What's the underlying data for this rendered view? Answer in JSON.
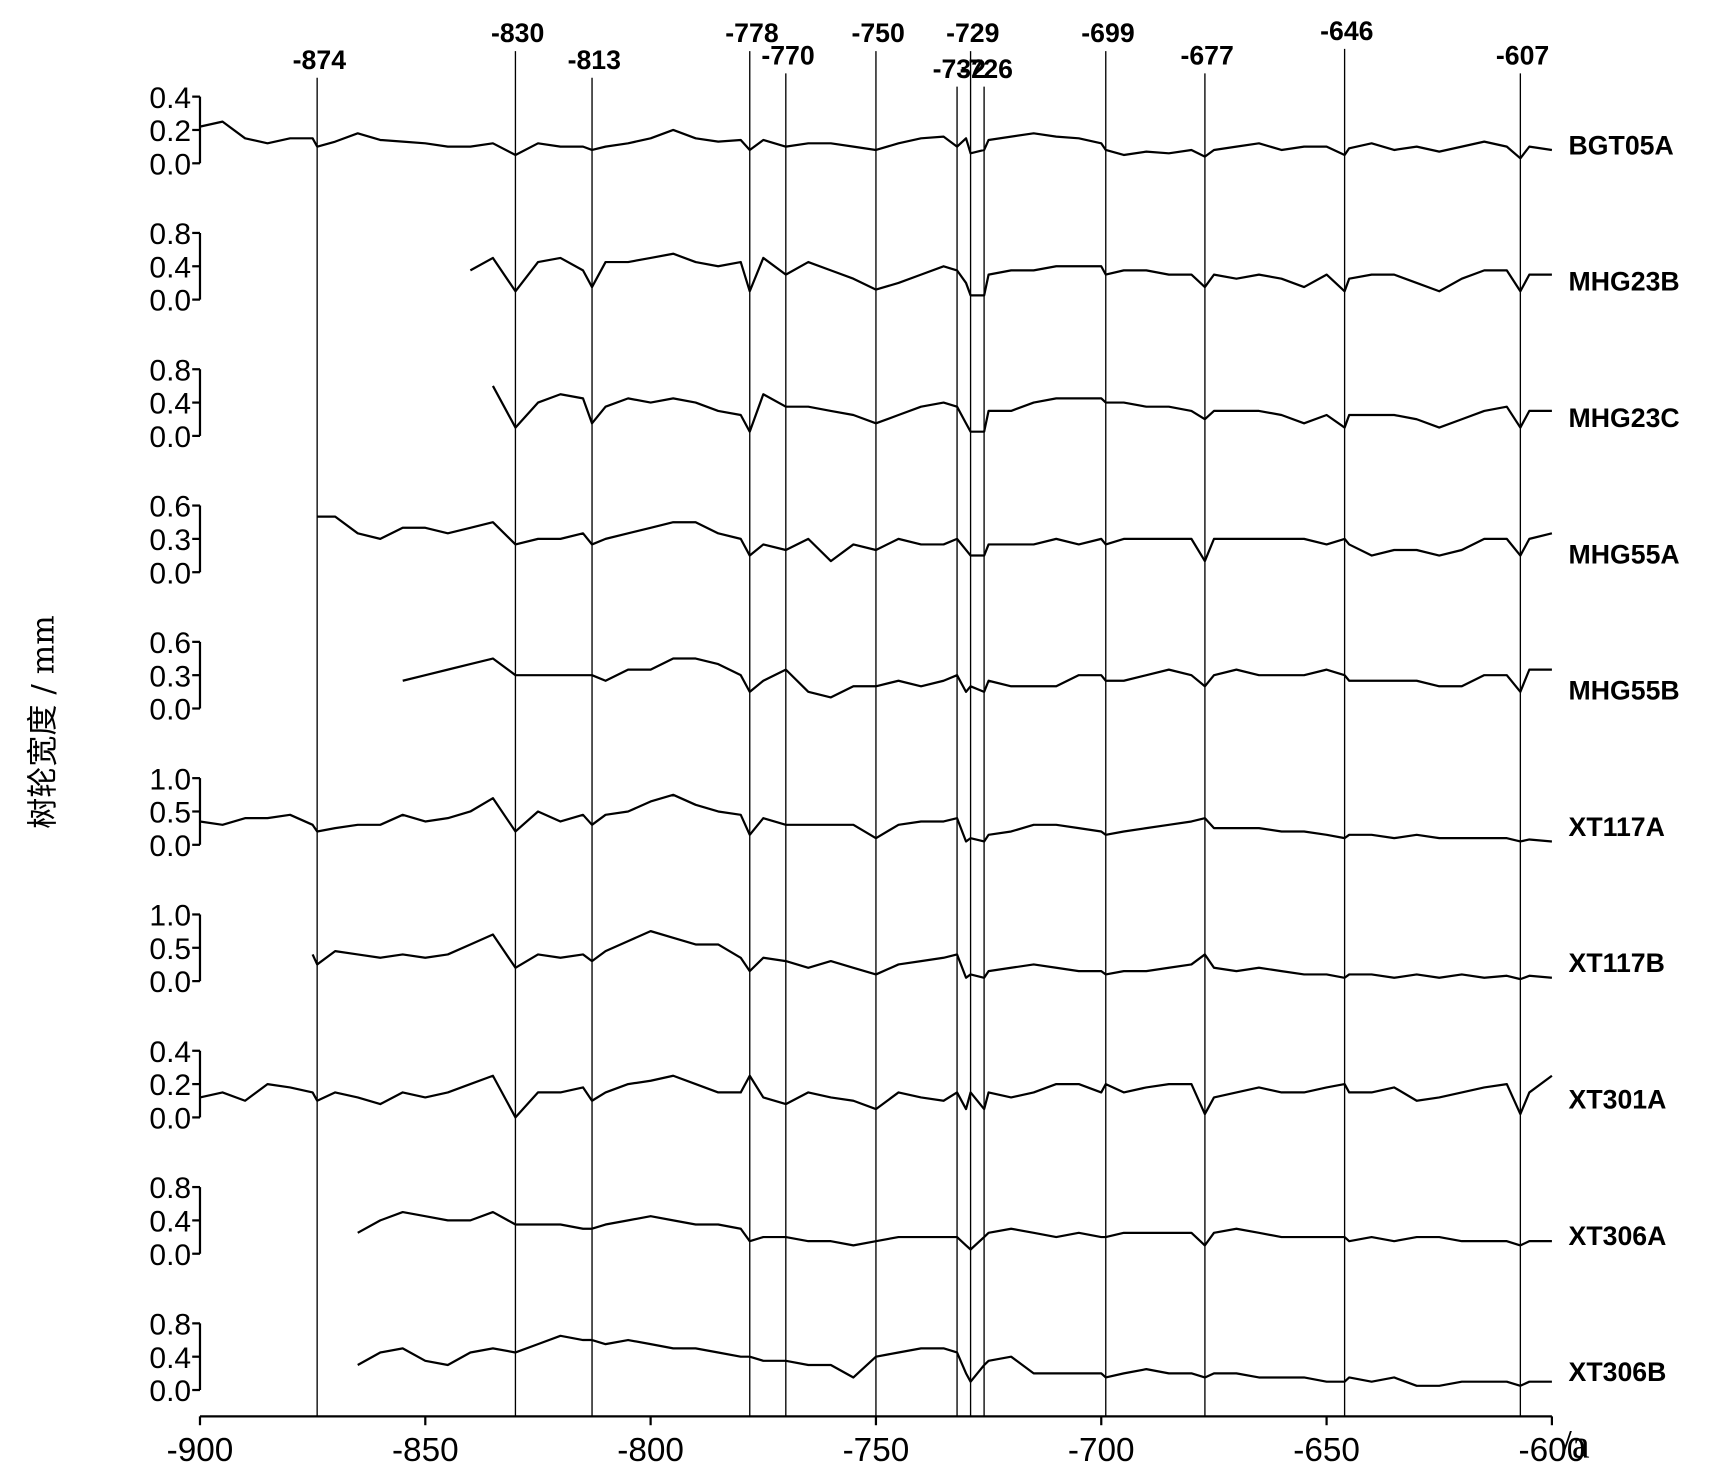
{
  "chart_data": {
    "type": "line",
    "y_label": "树轮宽度 / mm",
    "x_label": "/a",
    "xlim": [
      -900,
      -600
    ],
    "xticks": [
      -900,
      -850,
      -800,
      -750,
      -700,
      -650,
      -600
    ],
    "marker_years": [
      -874,
      -830,
      -813,
      -778,
      -770,
      -750,
      -732,
      -729,
      -726,
      -699,
      -677,
      -646,
      -607
    ],
    "x": [
      -900,
      -895,
      -890,
      -885,
      -880,
      -875,
      -874,
      -870,
      -865,
      -860,
      -855,
      -850,
      -845,
      -840,
      -835,
      -830,
      -825,
      -820,
      -815,
      -813,
      -810,
      -805,
      -800,
      -795,
      -790,
      -785,
      -780,
      -778,
      -775,
      -770,
      -765,
      -760,
      -755,
      -750,
      -745,
      -740,
      -735,
      -732,
      -730,
      -729,
      -726,
      -725,
      -720,
      -715,
      -710,
      -705,
      -700,
      -699,
      -695,
      -690,
      -685,
      -680,
      -677,
      -675,
      -670,
      -665,
      -660,
      -655,
      -650,
      -646,
      -645,
      -640,
      -635,
      -630,
      -625,
      -620,
      -615,
      -610,
      -607,
      -605,
      -600
    ],
    "series": [
      {
        "name": "BGT05A",
        "color": "#000000",
        "ylim": [
          0,
          0.4
        ],
        "yticks": [
          {
            "value": 0,
            "label": "0.0"
          },
          0.2,
          0.4
        ],
        "values": [
          0.22,
          0.25,
          0.15,
          0.12,
          0.15,
          0.15,
          0.1,
          0.13,
          0.18,
          0.14,
          0.13,
          0.12,
          0.1,
          0.1,
          0.12,
          0.05,
          0.12,
          0.1,
          0.1,
          0.08,
          0.1,
          0.12,
          0.15,
          0.2,
          0.15,
          0.13,
          0.14,
          0.08,
          0.14,
          0.1,
          0.12,
          0.12,
          0.1,
          0.08,
          0.12,
          0.15,
          0.16,
          0.1,
          0.15,
          0.06,
          0.08,
          0.14,
          0.16,
          0.18,
          0.16,
          0.15,
          0.12,
          0.08,
          0.05,
          0.07,
          0.06,
          0.08,
          0.04,
          0.08,
          0.1,
          0.12,
          0.08,
          0.1,
          0.1,
          0.05,
          0.09,
          0.12,
          0.08,
          0.1,
          0.07,
          0.1,
          0.13,
          0.1,
          0.03,
          0.1,
          0.08
        ]
      },
      {
        "name": "MHG23B",
        "color": "#000000",
        "ylim": [
          0,
          0.8
        ],
        "yticks": [
          {
            "value": 0,
            "label": "0.0"
          },
          0.4,
          0.8
        ],
        "values": [
          null,
          null,
          null,
          null,
          null,
          null,
          null,
          null,
          null,
          null,
          null,
          null,
          null,
          0.35,
          0.5,
          0.1,
          0.45,
          0.5,
          0.35,
          0.15,
          0.45,
          0.45,
          0.5,
          0.55,
          0.45,
          0.4,
          0.45,
          0.1,
          0.5,
          0.3,
          0.45,
          0.35,
          0.25,
          0.12,
          0.2,
          0.3,
          0.4,
          0.35,
          0.2,
          0.05,
          0.05,
          0.3,
          0.35,
          0.35,
          0.4,
          0.4,
          0.4,
          0.3,
          0.35,
          0.35,
          0.3,
          0.3,
          0.15,
          0.3,
          0.25,
          0.3,
          0.25,
          0.15,
          0.3,
          0.1,
          0.25,
          0.3,
          0.3,
          0.2,
          0.1,
          0.25,
          0.35,
          0.35,
          0.1,
          0.3,
          0.3
        ]
      },
      {
        "name": "MHG23C",
        "color": "#000000",
        "ylim": [
          0,
          0.8
        ],
        "yticks": [
          {
            "value": 0,
            "label": "0.0"
          },
          0.4,
          0.8
        ],
        "values": [
          null,
          null,
          null,
          null,
          null,
          null,
          null,
          null,
          null,
          null,
          null,
          null,
          null,
          null,
          0.6,
          0.1,
          0.4,
          0.5,
          0.45,
          0.15,
          0.35,
          0.45,
          0.4,
          0.45,
          0.4,
          0.3,
          0.25,
          0.05,
          0.5,
          0.35,
          0.35,
          0.3,
          0.25,
          0.15,
          0.25,
          0.35,
          0.4,
          0.35,
          0.15,
          0.05,
          0.05,
          0.3,
          0.3,
          0.4,
          0.45,
          0.45,
          0.45,
          0.4,
          0.4,
          0.35,
          0.35,
          0.3,
          0.2,
          0.3,
          0.3,
          0.3,
          0.25,
          0.15,
          0.25,
          0.1,
          0.25,
          0.25,
          0.25,
          0.2,
          0.1,
          0.2,
          0.3,
          0.35,
          0.1,
          0.3,
          0.3
        ]
      },
      {
        "name": "MHG55A",
        "color": "#000000",
        "ylim": [
          0,
          0.6
        ],
        "yticks": [
          {
            "value": 0,
            "label": "0.0"
          },
          0.3,
          0.6
        ],
        "values": [
          null,
          null,
          null,
          null,
          null,
          null,
          0.5,
          0.5,
          0.35,
          0.3,
          0.4,
          0.4,
          0.35,
          0.4,
          0.45,
          0.25,
          0.3,
          0.3,
          0.35,
          0.25,
          0.3,
          0.35,
          0.4,
          0.45,
          0.45,
          0.35,
          0.3,
          0.15,
          0.25,
          0.2,
          0.3,
          0.1,
          0.25,
          0.2,
          0.3,
          0.25,
          0.25,
          0.3,
          0.2,
          0.15,
          0.15,
          0.25,
          0.25,
          0.25,
          0.3,
          0.25,
          0.3,
          0.25,
          0.3,
          0.3,
          0.3,
          0.3,
          0.1,
          0.3,
          0.3,
          0.3,
          0.3,
          0.3,
          0.25,
          0.3,
          0.25,
          0.15,
          0.2,
          0.2,
          0.15,
          0.2,
          0.3,
          0.3,
          0.15,
          0.3,
          0.35
        ]
      },
      {
        "name": "MHG55B",
        "color": "#000000",
        "ylim": [
          0,
          0.6
        ],
        "yticks": [
          {
            "value": 0,
            "label": "0.0"
          },
          0.3,
          0.6
        ],
        "values": [
          null,
          null,
          null,
          null,
          null,
          null,
          null,
          null,
          null,
          null,
          0.25,
          0.3,
          0.35,
          0.4,
          0.45,
          0.3,
          0.3,
          0.3,
          0.3,
          0.3,
          0.25,
          0.35,
          0.35,
          0.45,
          0.45,
          0.4,
          0.3,
          0.15,
          0.25,
          0.35,
          0.15,
          0.1,
          0.2,
          0.2,
          0.25,
          0.2,
          0.25,
          0.3,
          0.15,
          0.2,
          0.15,
          0.25,
          0.2,
          0.2,
          0.2,
          0.3,
          0.3,
          0.25,
          0.25,
          0.3,
          0.35,
          0.3,
          0.2,
          0.3,
          0.35,
          0.3,
          0.3,
          0.3,
          0.35,
          0.3,
          0.25,
          0.25,
          0.25,
          0.25,
          0.2,
          0.2,
          0.3,
          0.3,
          0.15,
          0.35,
          0.35
        ]
      },
      {
        "name": "XT117A",
        "color": "#000000",
        "ylim": [
          0,
          1
        ],
        "yticks": [
          {
            "value": 0,
            "label": "0.0"
          },
          0.5,
          {
            "value": 1,
            "label": "1.0"
          }
        ],
        "values": [
          0.35,
          0.3,
          0.4,
          0.4,
          0.45,
          0.3,
          0.2,
          0.25,
          0.3,
          0.3,
          0.45,
          0.35,
          0.4,
          0.5,
          0.7,
          0.2,
          0.5,
          0.35,
          0.45,
          0.3,
          0.45,
          0.5,
          0.65,
          0.75,
          0.6,
          0.5,
          0.45,
          0.15,
          0.4,
          0.3,
          0.3,
          0.3,
          0.3,
          0.1,
          0.3,
          0.35,
          0.35,
          0.4,
          0.05,
          0.1,
          0.05,
          0.15,
          0.2,
          0.3,
          0.3,
          0.25,
          0.2,
          0.15,
          0.2,
          0.25,
          0.3,
          0.35,
          0.4,
          0.25,
          0.25,
          0.25,
          0.2,
          0.2,
          0.15,
          0.1,
          0.15,
          0.15,
          0.1,
          0.15,
          0.1,
          0.1,
          0.1,
          0.1,
          0.05,
          0.08,
          0.05
        ]
      },
      {
        "name": "XT117B",
        "color": "#000000",
        "ylim": [
          0,
          1
        ],
        "yticks": [
          {
            "value": 0,
            "label": "0.0"
          },
          0.5,
          {
            "value": 1,
            "label": "1.0"
          }
        ],
        "values": [
          null,
          null,
          null,
          null,
          null,
          0.4,
          0.25,
          0.45,
          0.4,
          0.35,
          0.4,
          0.35,
          0.4,
          0.55,
          0.7,
          0.2,
          0.4,
          0.35,
          0.4,
          0.3,
          0.45,
          0.6,
          0.75,
          0.65,
          0.55,
          0.55,
          0.35,
          0.15,
          0.35,
          0.3,
          0.2,
          0.3,
          0.2,
          0.1,
          0.25,
          0.3,
          0.35,
          0.4,
          0.05,
          0.1,
          0.05,
          0.15,
          0.2,
          0.25,
          0.2,
          0.15,
          0.15,
          0.1,
          0.15,
          0.15,
          0.2,
          0.25,
          0.4,
          0.2,
          0.15,
          0.2,
          0.15,
          0.1,
          0.1,
          0.05,
          0.1,
          0.1,
          0.05,
          0.1,
          0.05,
          0.1,
          0.05,
          0.08,
          0.03,
          0.08,
          0.05
        ]
      },
      {
        "name": "XT301A",
        "color": "#000000",
        "ylim": [
          0,
          0.4
        ],
        "yticks": [
          {
            "value": 0,
            "label": "0.0"
          },
          0.2,
          0.4
        ],
        "values": [
          0.12,
          0.15,
          0.1,
          0.2,
          0.18,
          0.15,
          0.1,
          0.15,
          0.12,
          0.08,
          0.15,
          0.12,
          0.15,
          0.2,
          0.25,
          0.0,
          0.15,
          0.15,
          0.18,
          0.1,
          0.15,
          0.2,
          0.22,
          0.25,
          0.2,
          0.15,
          0.15,
          0.25,
          0.12,
          0.08,
          0.15,
          0.12,
          0.1,
          0.05,
          0.15,
          0.12,
          0.1,
          0.15,
          0.05,
          0.15,
          0.05,
          0.15,
          0.12,
          0.15,
          0.2,
          0.2,
          0.15,
          0.2,
          0.15,
          0.18,
          0.2,
          0.2,
          0.02,
          0.12,
          0.15,
          0.18,
          0.15,
          0.15,
          0.18,
          0.2,
          0.15,
          0.15,
          0.18,
          0.1,
          0.12,
          0.15,
          0.18,
          0.2,
          0.02,
          0.15,
          0.25
        ]
      },
      {
        "name": "XT306A",
        "color": "#000000",
        "ylim": [
          0,
          0.8
        ],
        "yticks": [
          {
            "value": 0,
            "label": "0.0"
          },
          0.4,
          0.8
        ],
        "values": [
          null,
          null,
          null,
          null,
          null,
          null,
          null,
          null,
          0.25,
          0.4,
          0.5,
          0.45,
          0.4,
          0.4,
          0.5,
          0.35,
          0.35,
          0.35,
          0.3,
          0.3,
          0.35,
          0.4,
          0.45,
          0.4,
          0.35,
          0.35,
          0.3,
          0.15,
          0.2,
          0.2,
          0.15,
          0.15,
          0.1,
          0.15,
          0.2,
          0.2,
          0.2,
          0.2,
          0.1,
          0.05,
          0.2,
          0.25,
          0.3,
          0.25,
          0.2,
          0.25,
          0.2,
          0.2,
          0.25,
          0.25,
          0.25,
          0.25,
          0.1,
          0.25,
          0.3,
          0.25,
          0.2,
          0.2,
          0.2,
          0.2,
          0.15,
          0.2,
          0.15,
          0.2,
          0.2,
          0.15,
          0.15,
          0.15,
          0.1,
          0.15,
          0.15
        ]
      },
      {
        "name": "XT306B",
        "color": "#000000",
        "ylim": [
          0,
          0.8
        ],
        "yticks": [
          {
            "value": 0,
            "label": "0.0"
          },
          0.4,
          0.8
        ],
        "values": [
          null,
          null,
          null,
          null,
          null,
          null,
          null,
          null,
          0.3,
          0.45,
          0.5,
          0.35,
          0.3,
          0.45,
          0.5,
          0.45,
          0.55,
          0.65,
          0.6,
          0.6,
          0.55,
          0.6,
          0.55,
          0.5,
          0.5,
          0.45,
          0.4,
          0.4,
          0.35,
          0.35,
          0.3,
          0.3,
          0.15,
          0.4,
          0.45,
          0.5,
          0.5,
          0.45,
          0.2,
          0.1,
          0.3,
          0.35,
          0.4,
          0.2,
          0.2,
          0.2,
          0.2,
          0.15,
          0.2,
          0.25,
          0.2,
          0.2,
          0.15,
          0.2,
          0.2,
          0.15,
          0.15,
          0.15,
          0.1,
          0.1,
          0.15,
          0.1,
          0.15,
          0.05,
          0.05,
          0.1,
          0.1,
          0.1,
          0.05,
          0.1,
          0.1
        ]
      }
    ]
  }
}
